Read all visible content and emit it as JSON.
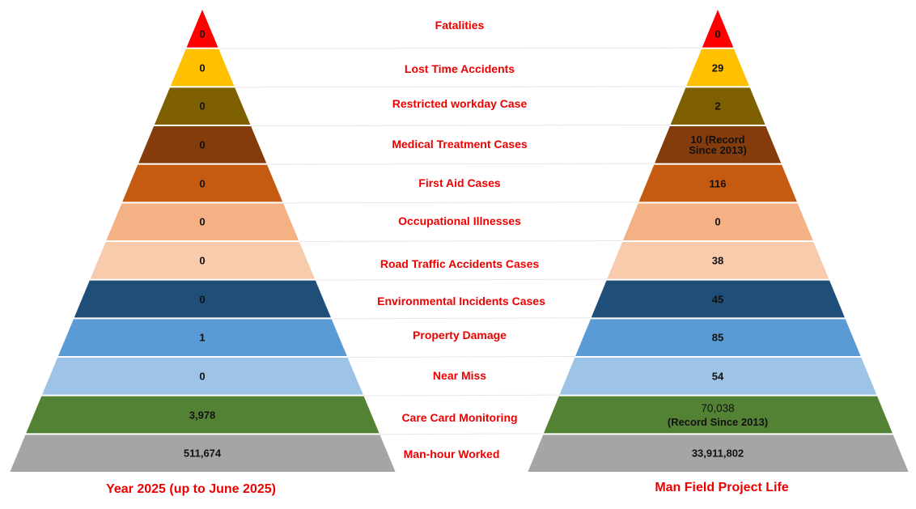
{
  "diagram": {
    "title_left": "Year 2025 (up to June 2025)",
    "title_right": "Man Field Project Life",
    "rows": [
      {
        "label": "Fatalities",
        "color": "#ff0000",
        "left": "0",
        "right": "0"
      },
      {
        "label": "Lost Time Accidents",
        "color": "#ffc000",
        "left": "0",
        "right": "29"
      },
      {
        "label": "Restricted workday Case",
        "color": "#7f6000",
        "left": "0",
        "right": "2"
      },
      {
        "label": "Medical Treatment Cases",
        "color": "#843c0c",
        "left": "0",
        "right": "10 (Record Since 2013)",
        "right_lines": [
          "10 (Record",
          "Since 2013)"
        ]
      },
      {
        "label": "First Aid Cases",
        "color": "#c55a11",
        "left": "0",
        "right": "116"
      },
      {
        "label": "Occupational Illnesses",
        "color": "#f4b183",
        "left": "0",
        "right": "0"
      },
      {
        "label": "Road Traffic Accidents Cases",
        "color": "#f8cbad",
        "left": "0",
        "right": "38"
      },
      {
        "label": "Environmental Incidents Cases",
        "color": "#1f4e79",
        "left": "0",
        "right": "45"
      },
      {
        "label": "Property Damage",
        "color": "#5b9bd5",
        "left": "1",
        "right": "85"
      },
      {
        "label": "Near Miss",
        "color": "#9dc3e6",
        "left": "0",
        "right": "54"
      },
      {
        "label": "Care Card Monitoring",
        "color": "#548235",
        "left": "3,978",
        "right": "70,038 (Record Since 2013)",
        "right_lines": [
          "70,038",
          "(Record Since 2013)"
        ]
      },
      {
        "label": "Man-hour Worked",
        "color": "#a5a5a5",
        "left": "511,674",
        "right": "33,911,802"
      }
    ]
  }
}
